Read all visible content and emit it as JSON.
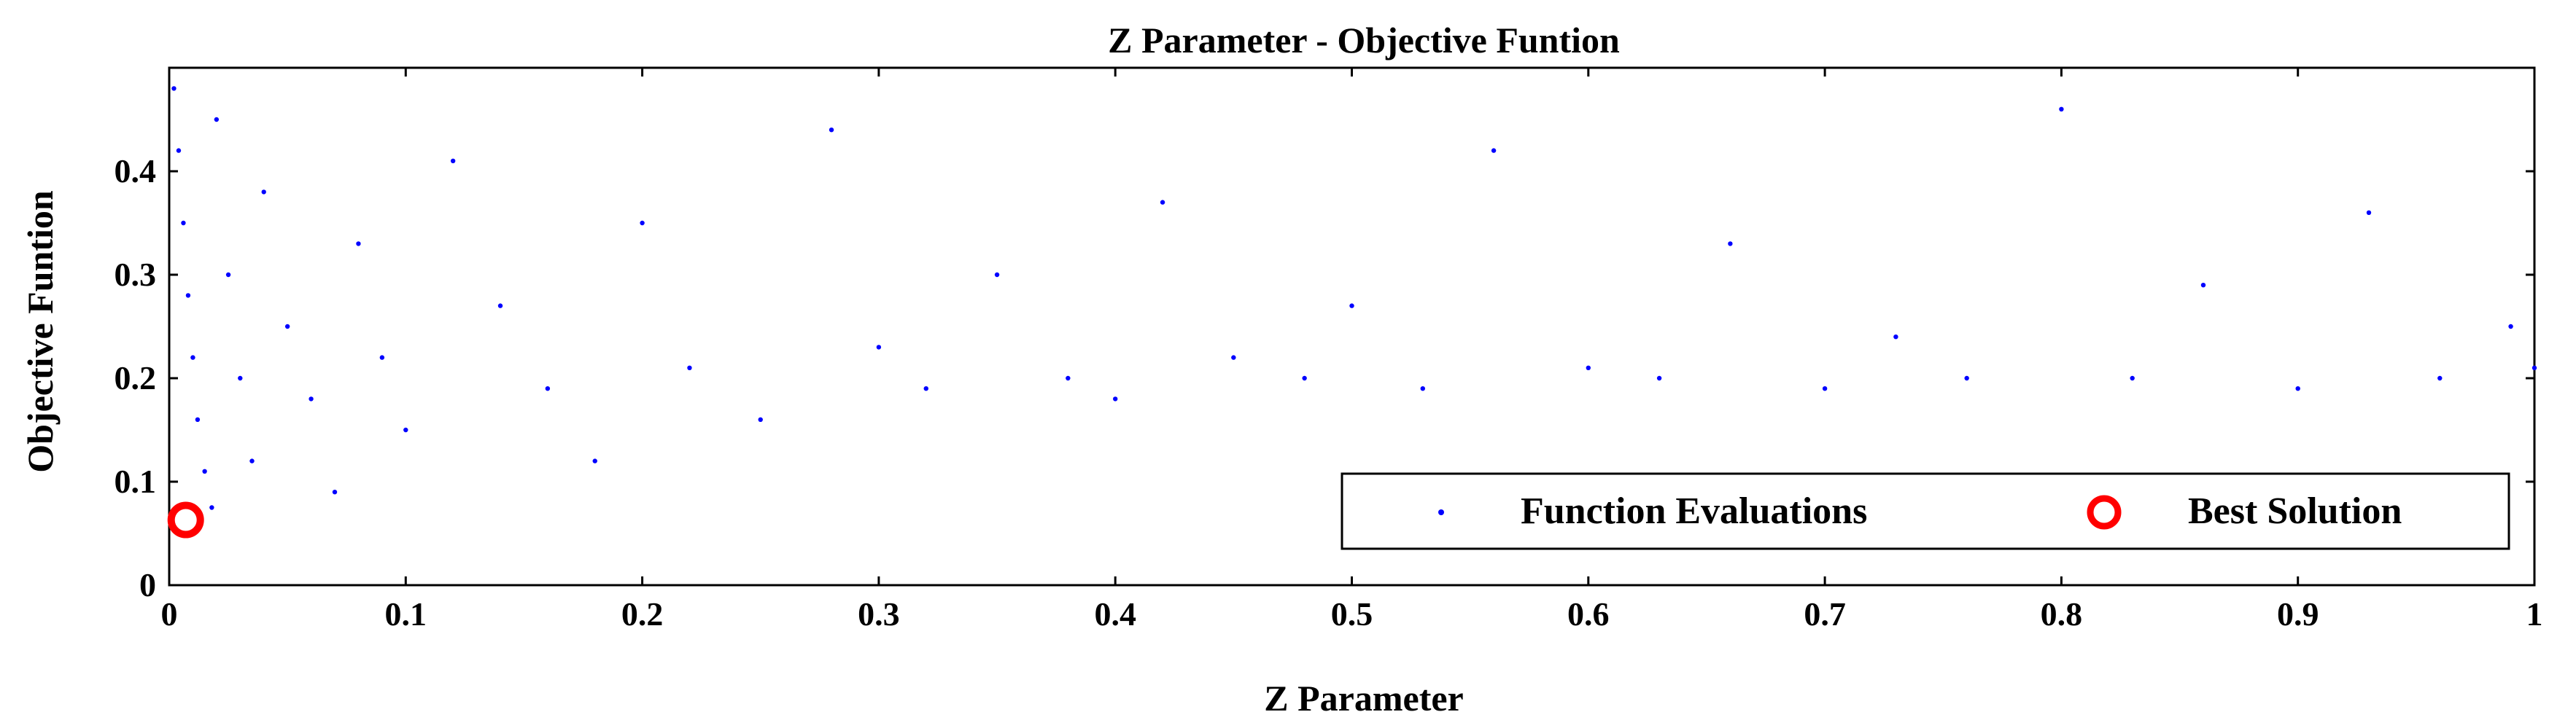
{
  "chart_data": {
    "type": "scatter",
    "title": "Z Parameter - Objective Funtion",
    "xlabel": "Z Parameter",
    "ylabel": "Objective Funtion",
    "xlim": [
      0,
      1
    ],
    "ylim": [
      0,
      0.5
    ],
    "xticks": [
      0,
      0.1,
      0.2,
      0.3,
      0.4,
      0.5,
      0.6,
      0.7,
      0.8,
      0.9,
      1
    ],
    "xtick_labels": [
      "0",
      "0.1",
      "0.2",
      "0.3",
      "0.4",
      "0.5",
      "0.6",
      "0.7",
      "0.8",
      "0.9",
      "1"
    ],
    "yticks": [
      0,
      0.1,
      0.2,
      0.3,
      0.4
    ],
    "ytick_labels": [
      "0",
      "0.1",
      "0.2",
      "0.3",
      "0.4"
    ],
    "grid": false,
    "legend_position": "bottom-right",
    "series": [
      {
        "name": "Function Evaluations",
        "marker": "dot",
        "color": "#0000ff",
        "points": [
          [
            0.002,
            0.48
          ],
          [
            0.004,
            0.42
          ],
          [
            0.006,
            0.35
          ],
          [
            0.008,
            0.28
          ],
          [
            0.01,
            0.22
          ],
          [
            0.012,
            0.16
          ],
          [
            0.015,
            0.11
          ],
          [
            0.018,
            0.075
          ],
          [
            0.02,
            0.45
          ],
          [
            0.025,
            0.3
          ],
          [
            0.03,
            0.2
          ],
          [
            0.035,
            0.12
          ],
          [
            0.04,
            0.38
          ],
          [
            0.05,
            0.25
          ],
          [
            0.06,
            0.18
          ],
          [
            0.07,
            0.09
          ],
          [
            0.08,
            0.33
          ],
          [
            0.09,
            0.22
          ],
          [
            0.1,
            0.15
          ],
          [
            0.12,
            0.41
          ],
          [
            0.14,
            0.27
          ],
          [
            0.16,
            0.19
          ],
          [
            0.18,
            0.12
          ],
          [
            0.2,
            0.35
          ],
          [
            0.22,
            0.21
          ],
          [
            0.25,
            0.16
          ],
          [
            0.28,
            0.44
          ],
          [
            0.3,
            0.23
          ],
          [
            0.32,
            0.19
          ],
          [
            0.35,
            0.3
          ],
          [
            0.38,
            0.2
          ],
          [
            0.4,
            0.18
          ],
          [
            0.42,
            0.37
          ],
          [
            0.45,
            0.22
          ],
          [
            0.48,
            0.2
          ],
          [
            0.5,
            0.27
          ],
          [
            0.53,
            0.19
          ],
          [
            0.56,
            0.42
          ],
          [
            0.6,
            0.21
          ],
          [
            0.63,
            0.2
          ],
          [
            0.66,
            0.33
          ],
          [
            0.7,
            0.19
          ],
          [
            0.73,
            0.24
          ],
          [
            0.76,
            0.2
          ],
          [
            0.8,
            0.46
          ],
          [
            0.83,
            0.2
          ],
          [
            0.86,
            0.29
          ],
          [
            0.9,
            0.19
          ],
          [
            0.93,
            0.36
          ],
          [
            0.96,
            0.2
          ],
          [
            0.99,
            0.25
          ],
          [
            1.0,
            0.21
          ]
        ]
      },
      {
        "name": "Best Solution",
        "marker": "circle",
        "color": "#ff0000",
        "points": [
          [
            0.007,
            0.063
          ]
        ]
      }
    ]
  }
}
